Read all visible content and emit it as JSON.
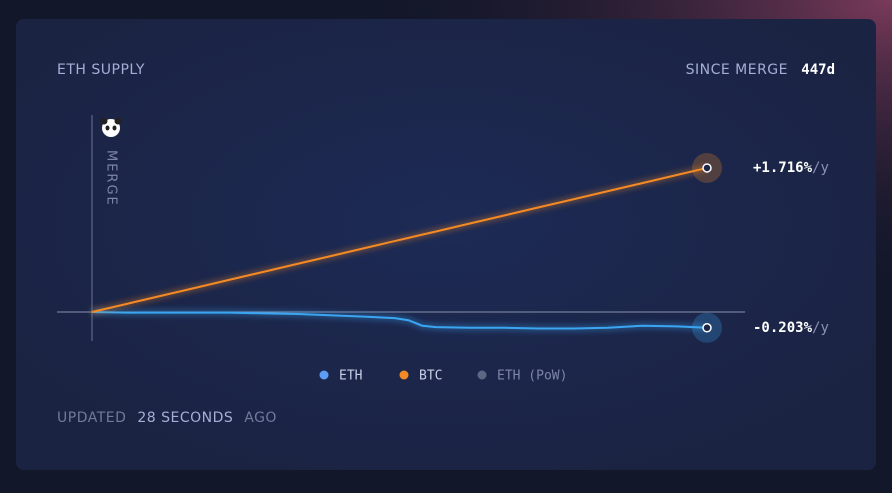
{
  "chart_data": {
    "type": "line",
    "title": "ETH SUPPLY",
    "since_merge_label": "SINCE MERGE",
    "since_merge_value": "447d",
    "annotation": "MERGE",
    "updated": {
      "prefix": "UPDATED",
      "time": "28 SECONDS",
      "suffix": "AGO"
    },
    "x": [
      0,
      25,
      50,
      75,
      100,
      125,
      150,
      175,
      200,
      220,
      230,
      240,
      250,
      275,
      300,
      325,
      350,
      375,
      400,
      425,
      447
    ],
    "xlim": [
      0,
      447
    ],
    "ylim": [
      -0.5,
      2.3
    ],
    "series": [
      {
        "name": "ETH",
        "color": "#3aa6f2",
        "legend_color": "#5b9cf5",
        "rate_label": "-0.203%",
        "rate_unit": "/y",
        "values": [
          0,
          -0.01,
          -0.01,
          -0.01,
          -0.01,
          -0.02,
          -0.03,
          -0.05,
          -0.07,
          -0.09,
          -0.12,
          -0.2,
          -0.22,
          -0.23,
          -0.23,
          -0.24,
          -0.24,
          -0.23,
          -0.2,
          -0.21,
          -0.23
        ]
      },
      {
        "name": "BTC",
        "color": "#f58a24",
        "legend_color": "#f58a24",
        "rate_label": "+1.716%",
        "rate_unit": "/y",
        "values": [
          0,
          0.117,
          0.235,
          0.352,
          0.47,
          0.587,
          0.705,
          0.822,
          0.94,
          1.034,
          1.081,
          1.128,
          1.174,
          1.292,
          1.409,
          1.527,
          1.644,
          1.762,
          1.879,
          1.997,
          2.1
        ]
      },
      {
        "name": "ETH (PoW)",
        "color": "#5c6785",
        "legend_color": "#5c6785",
        "values": [
          null,
          null,
          null,
          null,
          null,
          null,
          null,
          null,
          null,
          null,
          null,
          null,
          null,
          null,
          null,
          null,
          null,
          null,
          null,
          null,
          null
        ]
      }
    ]
  }
}
